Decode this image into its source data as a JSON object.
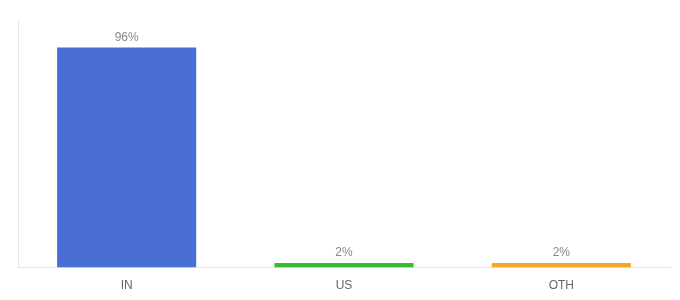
{
  "chart_data": {
    "type": "bar",
    "categories": [
      "IN",
      "US",
      "OTH"
    ],
    "values": [
      96,
      2,
      2
    ],
    "value_labels": [
      "96%",
      "2%",
      "2%"
    ],
    "colors": [
      "#4a6fd4",
      "#36b832",
      "#f5a623"
    ],
    "ylim": [
      0,
      108
    ],
    "grid": false,
    "data_labels": true,
    "tick_labels": "x"
  }
}
